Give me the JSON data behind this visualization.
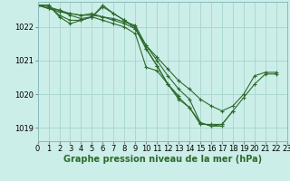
{
  "xlabel": "Graphe pression niveau de la mer (hPa)",
  "bg_color": "#cceee8",
  "grid_color": "#aad8d0",
  "line_color": "#2d6a2d",
  "xlim": [
    0,
    23
  ],
  "ylim": [
    1018.6,
    1022.75
  ],
  "yticks": [
    1019,
    1020,
    1021,
    1022
  ],
  "xticks": [
    0,
    1,
    2,
    3,
    4,
    5,
    6,
    7,
    8,
    9,
    10,
    11,
    12,
    13,
    14,
    15,
    16,
    17,
    18,
    19,
    20,
    21,
    22,
    23
  ],
  "series": [
    [
      0,
      1022.65
    ],
    [
      1,
      1022.65
    ],
    [
      2,
      1022.35
    ],
    [
      3,
      1022.2
    ],
    [
      4,
      1022.2
    ],
    [
      5,
      1022.3
    ],
    [
      6,
      1022.2
    ],
    [
      7,
      1022.1
    ],
    [
      8,
      1022.0
    ],
    [
      9,
      1021.8
    ],
    [
      10,
      1020.8
    ],
    [
      11,
      1020.7
    ],
    [
      12,
      1020.3
    ],
    [
      13,
      1019.9
    ],
    [
      14,
      1019.6
    ],
    [
      15,
      1019.1
    ],
    [
      16,
      1019.1
    ],
    [
      17,
      1019.1
    ],
    [
      18,
      1019.5
    ],
    [
      19,
      1019.9
    ],
    [
      20,
      1020.3
    ],
    [
      21,
      1020.6
    ],
    [
      22,
      1020.6
    ]
  ],
  "series2": [
    [
      0,
      1022.65
    ],
    [
      1,
      1022.65
    ],
    [
      2,
      1022.3
    ],
    [
      3,
      1022.1
    ],
    [
      4,
      1022.2
    ],
    [
      5,
      1022.3
    ],
    [
      6,
      1022.6
    ],
    [
      7,
      1022.4
    ],
    [
      8,
      1022.2
    ],
    [
      9,
      1022.0
    ],
    [
      10,
      1021.35
    ],
    [
      11,
      1020.85
    ],
    [
      12,
      1020.3
    ],
    [
      13,
      1019.85
    ],
    [
      14,
      1019.6
    ],
    [
      15,
      1019.15
    ],
    [
      16,
      1019.05
    ],
    [
      17,
      1019.05
    ]
  ],
  "series3": [
    [
      0,
      1022.65
    ],
    [
      1,
      1022.6
    ],
    [
      2,
      1022.5
    ],
    [
      3,
      1022.35
    ],
    [
      4,
      1022.25
    ],
    [
      5,
      1022.3
    ],
    [
      6,
      1022.65
    ],
    [
      7,
      1022.4
    ],
    [
      8,
      1022.2
    ],
    [
      9,
      1021.95
    ],
    [
      10,
      1021.35
    ],
    [
      11,
      1020.85
    ],
    [
      12,
      1020.3
    ],
    [
      13,
      1019.95
    ]
  ],
  "series4": [
    [
      0,
      1022.65
    ],
    [
      1,
      1022.55
    ],
    [
      2,
      1022.45
    ],
    [
      3,
      1022.4
    ],
    [
      4,
      1022.35
    ],
    [
      5,
      1022.35
    ],
    [
      6,
      1022.3
    ],
    [
      7,
      1022.25
    ],
    [
      8,
      1022.15
    ],
    [
      9,
      1022.05
    ],
    [
      10,
      1021.45
    ],
    [
      11,
      1021.0
    ],
    [
      12,
      1020.55
    ],
    [
      13,
      1020.15
    ],
    [
      14,
      1019.85
    ],
    [
      15,
      1019.15
    ],
    [
      16,
      1019.05
    ],
    [
      17,
      1019.1
    ],
    [
      18,
      1019.5
    ]
  ],
  "series5": [
    [
      0,
      1022.65
    ],
    [
      1,
      1022.55
    ],
    [
      2,
      1022.5
    ],
    [
      3,
      1022.4
    ],
    [
      4,
      1022.35
    ],
    [
      5,
      1022.4
    ],
    [
      6,
      1022.3
    ],
    [
      7,
      1022.2
    ],
    [
      8,
      1022.1
    ],
    [
      9,
      1021.95
    ],
    [
      10,
      1021.45
    ],
    [
      11,
      1021.1
    ],
    [
      12,
      1020.75
    ],
    [
      13,
      1020.4
    ],
    [
      14,
      1020.15
    ],
    [
      15,
      1019.85
    ],
    [
      16,
      1019.65
    ],
    [
      17,
      1019.5
    ],
    [
      18,
      1019.65
    ],
    [
      19,
      1020.0
    ],
    [
      20,
      1020.55
    ],
    [
      21,
      1020.65
    ],
    [
      22,
      1020.65
    ]
  ],
  "xlabel_fontsize": 7,
  "tick_fontsize": 6
}
